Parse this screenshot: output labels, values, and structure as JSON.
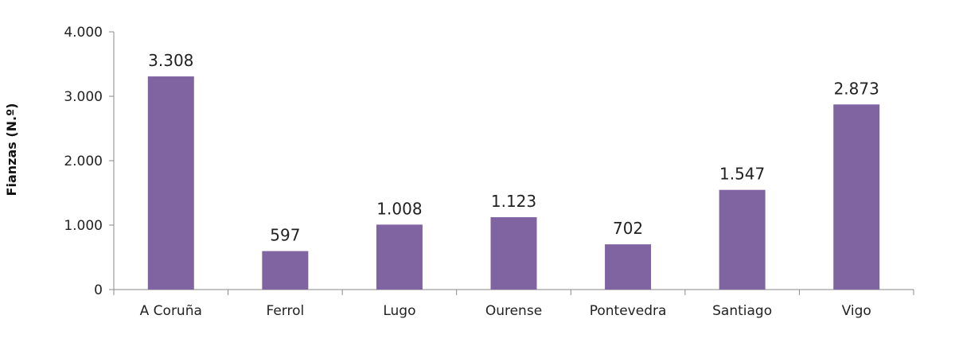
{
  "chart_data": {
    "type": "bar",
    "categories": [
      "A Coruña",
      "Ferrol",
      "Lugo",
      "Ourense",
      "Pontevedra",
      "Santiago",
      "Vigo"
    ],
    "values": [
      3308,
      597,
      1008,
      1123,
      702,
      1547,
      2873
    ],
    "value_labels": [
      "3.308",
      "597",
      "1.008",
      "1.123",
      "702",
      "1.547",
      "2.873"
    ],
    "ylabel": "Fianzas (N.º)",
    "xlabel": "",
    "title": "",
    "ylim": [
      0,
      4000
    ],
    "yticks": [
      0,
      1000,
      2000,
      3000,
      4000
    ],
    "ytick_labels": [
      "0",
      "1.000",
      "2.000",
      "3.000",
      "4.000"
    ],
    "grid": false,
    "legend": "none",
    "bar_color": "#8064a2"
  }
}
